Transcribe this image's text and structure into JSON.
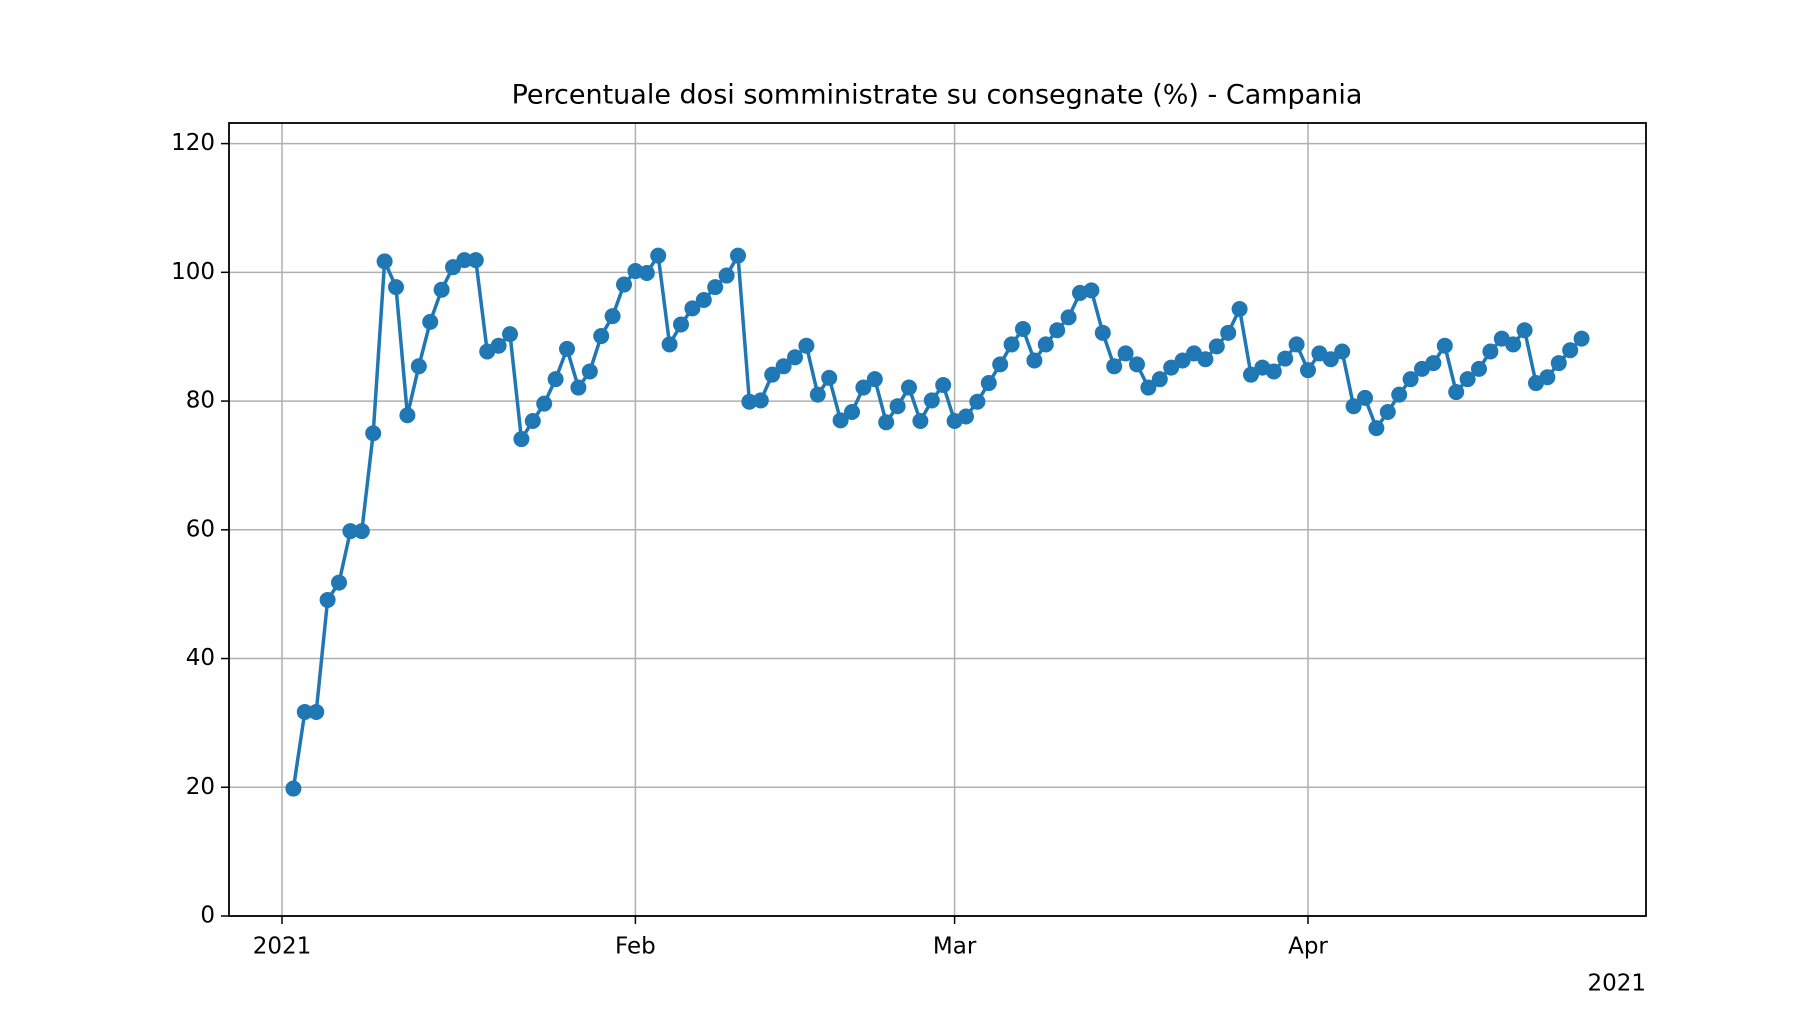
{
  "chart_data": {
    "type": "line",
    "title": "Percentuale dosi somministrate su consegnate (%) - Campania",
    "x": [
      1,
      2,
      3,
      4,
      5,
      6,
      7,
      8,
      9,
      10,
      11,
      12,
      13,
      14,
      15,
      16,
      17,
      18,
      19,
      20,
      21,
      22,
      23,
      24,
      25,
      26,
      27,
      28,
      29,
      30,
      31,
      32,
      33,
      34,
      35,
      36,
      37,
      38,
      39,
      40,
      41,
      42,
      43,
      44,
      45,
      46,
      47,
      48,
      49,
      50,
      51,
      52,
      53,
      54,
      55,
      56,
      57,
      58,
      59,
      60,
      61,
      62,
      63,
      64,
      65,
      66,
      67,
      68,
      69,
      70,
      71,
      72,
      73,
      74,
      75,
      76,
      77,
      78,
      79,
      80,
      81,
      82,
      83,
      84,
      85,
      86,
      87,
      88,
      89,
      90,
      91,
      92,
      93,
      94,
      95,
      96,
      97,
      98,
      99,
      100,
      101,
      102,
      103,
      104,
      105,
      106,
      107,
      108,
      109,
      110,
      111,
      112,
      113,
      114
    ],
    "values": [
      19.8,
      31.7,
      31.7,
      49.1,
      51.8,
      59.8,
      59.8,
      75.0,
      101.7,
      97.7,
      77.8,
      85.4,
      92.3,
      97.3,
      100.8,
      101.9,
      101.9,
      87.7,
      88.6,
      90.4,
      74.1,
      76.9,
      79.6,
      83.4,
      88.1,
      82.1,
      84.6,
      90.1,
      93.2,
      98.1,
      100.2,
      99.9,
      102.6,
      88.8,
      91.9,
      94.4,
      95.7,
      97.7,
      99.5,
      102.6,
      79.9,
      80.1,
      84.1,
      85.4,
      86.8,
      88.6,
      81.0,
      83.6,
      77.0,
      78.3,
      82.1,
      83.4,
      76.7,
      79.2,
      82.1,
      76.9,
      80.1,
      82.5,
      76.9,
      77.6,
      79.9,
      82.8,
      85.7,
      88.8,
      91.2,
      86.3,
      88.8,
      91.0,
      93.0,
      96.8,
      97.2,
      90.6,
      85.4,
      87.4,
      85.7,
      82.1,
      83.4,
      85.2,
      86.3,
      87.4,
      86.5,
      88.5,
      90.6,
      94.3,
      84.1,
      85.2,
      84.6,
      86.6,
      88.8,
      84.8,
      87.4,
      86.5,
      87.7,
      79.2,
      80.5,
      75.8,
      78.3,
      81.0,
      83.4,
      85.0,
      85.9,
      88.6,
      81.4,
      83.4,
      85.0,
      87.7,
      89.7,
      88.8,
      91.0,
      82.8,
      83.7,
      85.9,
      87.9,
      89.7
    ],
    "color": "#1f77b4",
    "marker": "circle",
    "xlim": [
      -4.65,
      119.65
    ],
    "xticks": [
      {
        "value": 0,
        "label": "2021"
      },
      {
        "value": 31,
        "label": "Feb"
      },
      {
        "value": 59,
        "label": "Mar"
      },
      {
        "value": 90,
        "label": "Apr"
      }
    ],
    "x_offset_label": "2021",
    "ylim": [
      0,
      123.2
    ],
    "yticks": [
      0,
      20,
      40,
      60,
      80,
      100,
      120
    ],
    "grid": true
  }
}
